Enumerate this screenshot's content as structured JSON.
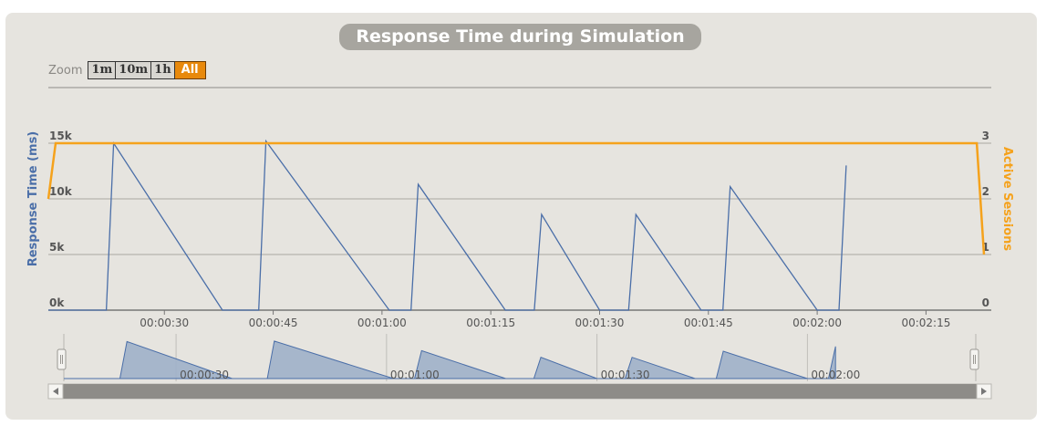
{
  "zoom": {
    "label": "Zoom",
    "buttons": [
      "1m",
      "10m",
      "1h",
      "All"
    ],
    "active": "All"
  },
  "colors": {
    "response": "#4a6ea8",
    "sessions": "#f5a21c",
    "navigator_fill": "#9fb0c9",
    "panel": "#e6e4df",
    "title_bg": "#a7a59f",
    "active_zoom": "#e8890c"
  },
  "chart_data": {
    "type": "line",
    "title": "Response Time during Simulation",
    "xlabel": "",
    "ylabel": "Response Time (ms)",
    "y2label": "Active Sessions",
    "xlim": [
      "00:00:14",
      "00:02:24"
    ],
    "x_ticks": [
      "00:00:30",
      "00:00:45",
      "00:01:00",
      "00:01:15",
      "00:01:30",
      "00:01:45",
      "00:02:00",
      "00:02:15"
    ],
    "ylim": [
      0,
      15000
    ],
    "y_ticks": [
      "0k",
      "5k",
      "10k",
      "15k"
    ],
    "y2lim": [
      0,
      3
    ],
    "y2_ticks": [
      "0",
      "1",
      "2",
      "3"
    ],
    "grid": true,
    "navigator_ticks": [
      "00:00:30",
      "00:01:00",
      "00:01:30",
      "00:02:00"
    ],
    "series": [
      {
        "name": "Response Time (ms)",
        "axis": "left",
        "points": [
          [
            "00:00:14",
            0
          ],
          [
            "00:00:22",
            0
          ],
          [
            "00:00:23",
            15000
          ],
          [
            "00:00:38",
            0
          ],
          [
            "00:00:43",
            0
          ],
          [
            "00:00:44",
            15200
          ],
          [
            "00:01:01",
            0
          ],
          [
            "00:01:04",
            0
          ],
          [
            "00:01:05",
            11300
          ],
          [
            "00:01:17",
            0
          ],
          [
            "00:01:21",
            0
          ],
          [
            "00:01:22",
            8600
          ],
          [
            "00:01:30",
            0
          ],
          [
            "00:01:34",
            0
          ],
          [
            "00:01:35",
            8600
          ],
          [
            "00:01:44",
            0
          ],
          [
            "00:01:47",
            0
          ],
          [
            "00:01:48",
            11100
          ],
          [
            "00:02:00",
            0
          ],
          [
            "00:02:03",
            0
          ],
          [
            "00:02:04",
            13000
          ]
        ]
      },
      {
        "name": "Active Sessions",
        "axis": "right",
        "points": [
          [
            "00:00:14",
            2
          ],
          [
            "00:00:15",
            3
          ],
          [
            "00:02:22",
            3
          ],
          [
            "00:02:23",
            1
          ]
        ]
      }
    ]
  }
}
